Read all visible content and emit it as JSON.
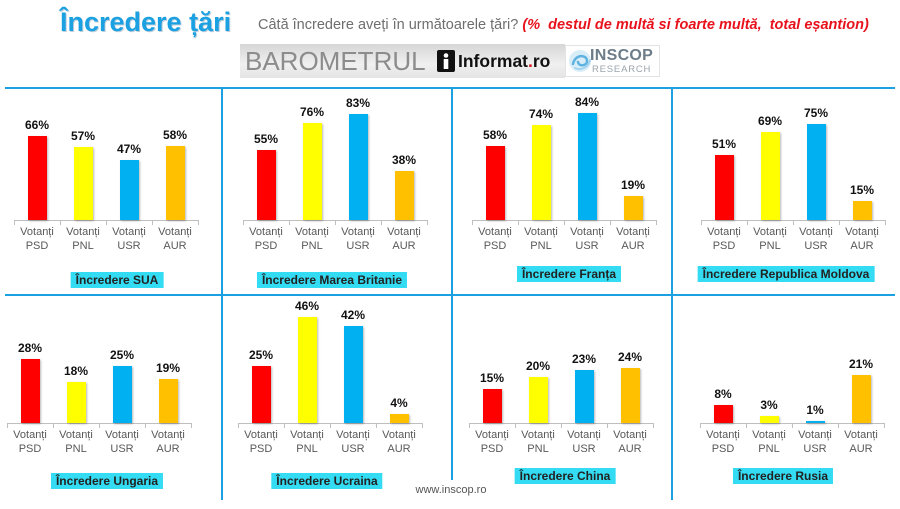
{
  "header": {
    "title": "Încredere țări",
    "question": "Câtă încredere aveți în următoarele țări?",
    "note": "(%  destul de multă si foarte multă,  total eșantion)"
  },
  "logos": {
    "barometer": "BAROMETRUL",
    "informat": {
      "name": "Informat",
      "dot": ".",
      "tld": "ro",
      "icon": "informat-logo-icon"
    },
    "inscop": {
      "name": "INSCOP",
      "tagline": "RESEARCH",
      "icon": "inscop-swirl-icon"
    }
  },
  "footer": {
    "url": "www.inscop.ro"
  },
  "theme": {
    "accent": "#1ba1e2",
    "title_box": "#33dcf2",
    "note": "#e8121c",
    "text": "#595959"
  },
  "chart_data": [
    {
      "type": "bar",
      "title": "Încredere SUA",
      "categories": [
        "Votanți PSD",
        "Votanți PNL",
        "Votanți USR",
        "Votanți AUR"
      ],
      "values": [
        66,
        57,
        47,
        58
      ],
      "unit": "%",
      "colors": [
        "#ff0000",
        "#ffff00",
        "#00b0f0",
        "#ffc000"
      ],
      "ylim": [
        0,
        90
      ],
      "grid": false
    },
    {
      "type": "bar",
      "title": "Încredere Marea Britanie",
      "categories": [
        "Votanți PSD",
        "Votanți PNL",
        "Votanți USR",
        "Votanți AUR"
      ],
      "values": [
        55,
        76,
        83,
        38
      ],
      "unit": "%",
      "colors": [
        "#ff0000",
        "#ffff00",
        "#00b0f0",
        "#ffc000"
      ],
      "ylim": [
        0,
        90
      ],
      "grid": false
    },
    {
      "type": "bar",
      "title": "Încredere Franța",
      "categories": [
        "Votanți PSD",
        "Votanți PNL",
        "Votanți USR",
        "Votanți AUR"
      ],
      "values": [
        58,
        74,
        84,
        19
      ],
      "unit": "%",
      "colors": [
        "#ff0000",
        "#ffff00",
        "#00b0f0",
        "#ffc000"
      ],
      "ylim": [
        0,
        90
      ],
      "grid": false
    },
    {
      "type": "bar",
      "title": "Încredere Republica Moldova",
      "categories": [
        "Votanți PSD",
        "Votanți PNL",
        "Votanți USR",
        "Votanți AUR"
      ],
      "values": [
        51,
        69,
        75,
        15
      ],
      "unit": "%",
      "colors": [
        "#ff0000",
        "#ffff00",
        "#00b0f0",
        "#ffc000"
      ],
      "ylim": [
        0,
        90
      ],
      "grid": false
    },
    {
      "type": "bar",
      "title": "Încredere Ungaria",
      "categories": [
        "Votanți PSD",
        "Votanți PNL",
        "Votanți USR",
        "Votanți AUR"
      ],
      "values": [
        28,
        18,
        25,
        19
      ],
      "unit": "%",
      "colors": [
        "#ff0000",
        "#ffff00",
        "#00b0f0",
        "#ffc000"
      ],
      "ylim": [
        0,
        50
      ],
      "grid": false
    },
    {
      "type": "bar",
      "title": "Încredere Ucraina",
      "categories": [
        "Votanți PSD",
        "Votanți PNL",
        "Votanți USR",
        "Votanți AUR"
      ],
      "values": [
        25,
        46,
        42,
        4
      ],
      "unit": "%",
      "colors": [
        "#ff0000",
        "#ffff00",
        "#00b0f0",
        "#ffc000"
      ],
      "ylim": [
        0,
        50
      ],
      "grid": false
    },
    {
      "type": "bar",
      "title": "Încredere China",
      "categories": [
        "Votanți PSD",
        "Votanți PNL",
        "Votanți USR",
        "Votanți AUR"
      ],
      "values": [
        15,
        20,
        23,
        24
      ],
      "unit": "%",
      "colors": [
        "#ff0000",
        "#ffff00",
        "#00b0f0",
        "#ffc000"
      ],
      "ylim": [
        0,
        50
      ],
      "grid": false
    },
    {
      "type": "bar",
      "title": "Încredere Rusia",
      "categories": [
        "Votanți PSD",
        "Votanți PNL",
        "Votanți USR",
        "Votanți AUR"
      ],
      "values": [
        8,
        3,
        1,
        21
      ],
      "unit": "%",
      "colors": [
        "#ff0000",
        "#ffff00",
        "#00b0f0",
        "#ffc000"
      ],
      "ylim": [
        0,
        50
      ],
      "grid": false
    }
  ]
}
